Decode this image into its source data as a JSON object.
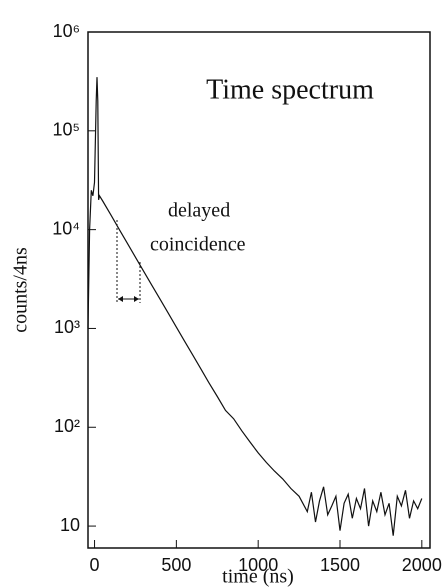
{
  "chart_data": {
    "type": "line",
    "title": "Time   spectrum",
    "annotations": [
      "delayed",
      "coincidence"
    ],
    "xlabel": "time  (ns)",
    "ylabel": "counts/4ns",
    "log_y": true,
    "xlim": [
      -40,
      2050
    ],
    "xticks": [
      0,
      500,
      1000,
      1500,
      2000
    ],
    "ylim": [
      6,
      1000000
    ],
    "yticks": [
      10,
      {
        "value": 100,
        "label": "10²"
      },
      {
        "value": 1000,
        "label": "10³"
      },
      {
        "value": 10000,
        "label": "10⁴"
      },
      {
        "value": 100000,
        "label": "10⁵"
      },
      {
        "value": 1000000,
        "label": "10⁶"
      }
    ],
    "series": [
      {
        "name": "spectrum",
        "color": "#111111",
        "x": [
          -40,
          -30,
          -20,
          -10,
          0,
          10,
          15,
          20,
          25,
          30,
          50,
          100,
          150,
          200,
          250,
          300,
          350,
          400,
          450,
          500,
          550,
          600,
          650,
          700,
          750,
          800,
          850,
          900,
          950,
          1000,
          1050,
          1100,
          1150,
          1200,
          1250,
          1300,
          1325,
          1350,
          1375,
          1400,
          1425,
          1450,
          1475,
          1500,
          1525,
          1550,
          1575,
          1600,
          1625,
          1650,
          1675,
          1700,
          1725,
          1750,
          1775,
          1800,
          1825,
          1850,
          1875,
          1900,
          1925,
          1950,
          1975,
          2000
        ],
        "values": [
          1000,
          10000,
          25000,
          22000,
          30000,
          200000,
          350000,
          200000,
          20000,
          22000,
          19500,
          14100,
          10100,
          7290,
          5250,
          3800,
          2740,
          1980,
          1430,
          1030,
          745,
          540,
          390,
          280,
          205,
          148,
          122,
          92,
          71,
          55,
          44,
          36,
          30,
          24,
          20,
          14,
          22,
          11,
          18,
          25,
          13,
          16,
          20,
          9,
          17,
          21,
          12,
          19,
          15,
          24,
          10,
          18,
          14,
          22,
          13,
          17,
          8,
          20,
          16,
          23,
          12,
          18,
          15,
          19
        ]
      }
    ]
  }
}
